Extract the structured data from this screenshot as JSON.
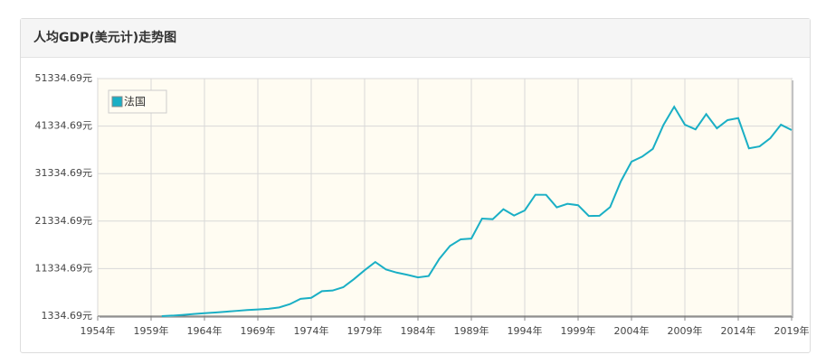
{
  "chart_data": {
    "type": "line",
    "title": "人均GDP(美元计)走势图",
    "x": [
      1960,
      1961,
      1962,
      1963,
      1964,
      1965,
      1966,
      1967,
      1968,
      1969,
      1970,
      1971,
      1972,
      1973,
      1974,
      1975,
      1976,
      1977,
      1978,
      1979,
      1980,
      1981,
      1982,
      1983,
      1984,
      1985,
      1986,
      1987,
      1988,
      1989,
      1990,
      1991,
      1992,
      1993,
      1994,
      1995,
      1996,
      1997,
      1998,
      1999,
      2000,
      2001,
      2002,
      2003,
      2004,
      2005,
      2006,
      2007,
      2008,
      2009,
      2010,
      2011,
      2012,
      2013,
      2014,
      2015,
      2016,
      2017,
      2018,
      2019
    ],
    "series": [
      {
        "name": "法国",
        "color": "#1aafc5",
        "values": [
          1338,
          1442,
          1600,
          1780,
          1960,
          2100,
          2270,
          2440,
          2620,
          2730,
          2870,
          3170,
          3860,
          4980,
          5190,
          6590,
          6720,
          7420,
          9120,
          10990,
          12720,
          11150,
          10500,
          10030,
          9480,
          9780,
          13390,
          16120,
          17500,
          17660,
          21870,
          21740,
          23840,
          22500,
          23580,
          26890,
          26870,
          24230,
          24970,
          24680,
          22420,
          22450,
          24290,
          29690,
          33850,
          34910,
          36540,
          41600,
          45410,
          41630,
          40640,
          43850,
          40870,
          42590,
          43010,
          36650,
          37060,
          38780,
          41630,
          40490
        ]
      }
    ],
    "xlim": [
      1954,
      2019
    ],
    "xticks": [
      {
        "value": 1954,
        "label": "1954年"
      },
      {
        "value": 1959,
        "label": "1959年"
      },
      {
        "value": 1964,
        "label": "1964年"
      },
      {
        "value": 1969,
        "label": "1969年"
      },
      {
        "value": 1974,
        "label": "1974年"
      },
      {
        "value": 1979,
        "label": "1979年"
      },
      {
        "value": 1984,
        "label": "1984年"
      },
      {
        "value": 1989,
        "label": "1989年"
      },
      {
        "value": 1994,
        "label": "1994年"
      },
      {
        "value": 1999,
        "label": "1999年"
      },
      {
        "value": 2004,
        "label": "2004年"
      },
      {
        "value": 2009,
        "label": "2009年"
      },
      {
        "value": 2014,
        "label": "2014年"
      },
      {
        "value": 2019,
        "label": "2019年"
      }
    ],
    "ylim": [
      1334.69,
      51334.69
    ],
    "yticks": [
      {
        "value": 1334.69,
        "label": "1334.69元"
      },
      {
        "value": 11334.69,
        "label": "11334.69元"
      },
      {
        "value": 21334.69,
        "label": "21334.69元"
      },
      {
        "value": 31334.69,
        "label": "31334.69元"
      },
      {
        "value": 41334.69,
        "label": "41334.69元"
      },
      {
        "value": 51334.69,
        "label": "51334.69元"
      }
    ],
    "grid": true,
    "legend": "top-left"
  }
}
